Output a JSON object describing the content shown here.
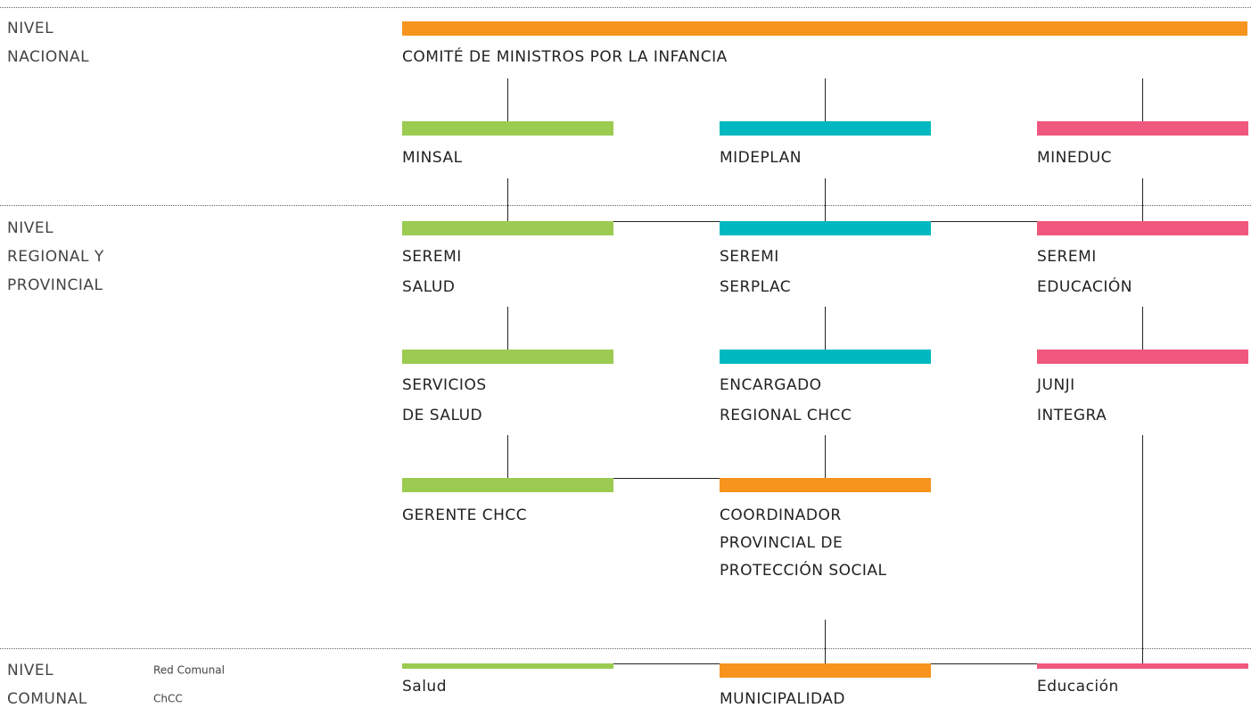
{
  "levels": [
    {
      "lines": [
        "NIVEL",
        "NACIONAL"
      ]
    },
    {
      "lines": [
        "NIVEL",
        "REGIONAL Y",
        "PROVINCIAL"
      ]
    },
    {
      "lines": [
        "NIVEL",
        "COMUNAL"
      ],
      "note": [
        "Red Comunal",
        "ChCC"
      ]
    }
  ],
  "nodes": [
    {
      "lines": [
        "COMITÉ DE MINISTROS POR LA INFANCIA"
      ]
    },
    {
      "lines": [
        "MINSAL"
      ]
    },
    {
      "lines": [
        "MIDEPLAN"
      ]
    },
    {
      "lines": [
        "MINEDUC"
      ]
    },
    {
      "lines": [
        "SEREMI",
        "SALUD"
      ]
    },
    {
      "lines": [
        "SEREMI",
        "SERPLAC"
      ]
    },
    {
      "lines": [
        "SEREMI",
        "EDUCACIÓN"
      ]
    },
    {
      "lines": [
        "SERVICIOS",
        "DE SALUD"
      ]
    },
    {
      "lines": [
        "ENCARGADO",
        "REGIONAL CHCC"
      ]
    },
    {
      "lines": [
        "JUNJI",
        "INTEGRA"
      ]
    },
    {
      "lines": [
        "GERENTE CHCC"
      ]
    },
    {
      "lines": [
        "COORDINADOR",
        "PROVINCIAL DE",
        "PROTECCIÓN SOCIAL"
      ]
    },
    {
      "lines": [
        "Salud"
      ]
    },
    {
      "lines": [
        "MUNICIPALIDAD"
      ]
    },
    {
      "lines": [
        "Educación"
      ]
    }
  ]
}
